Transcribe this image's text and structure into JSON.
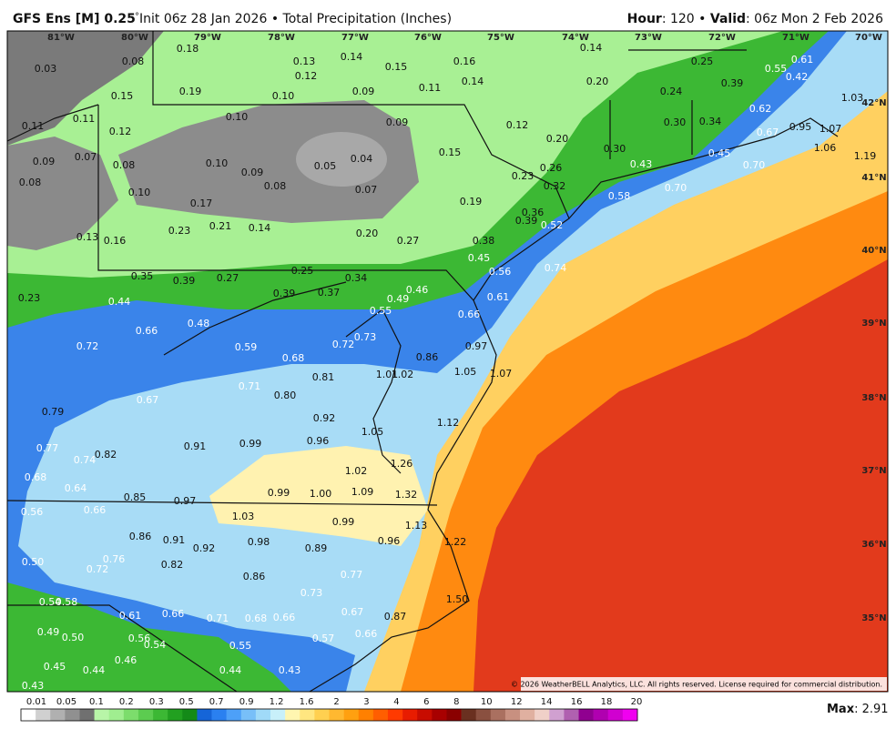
{
  "header": {
    "model": "GFS Ens [M] 0.25",
    "degree": "°",
    "description": " Init 06z 28 Jan 2026 • Total Precipitation (Inches)",
    "hour_key": "Hour",
    "hour_value": ": 120 • ",
    "valid_key": "Valid",
    "valid_value": ": 06z Mon 2 Feb 2026"
  },
  "longitudes": [
    "81°W",
    "80°W",
    "79°W",
    "78°W",
    "77°W",
    "76°W",
    "75°W",
    "74°W",
    "73°W",
    "72°W",
    "71°W",
    "70°W"
  ],
  "latitudes": [
    "42°N",
    "41°N",
    "40°N",
    "39°N",
    "38°N",
    "37°N",
    "36°N",
    "35°N"
  ],
  "station_values": [
    "0.03",
    "0.08",
    "0.18",
    "0.13",
    "0.14",
    "0.12",
    "0.15",
    "0.16",
    "0.14",
    "0.14",
    "0.20",
    "0.25",
    "0.55",
    "0.61",
    "0.39",
    "0.42",
    "0.24",
    "1.03",
    "0.15",
    "0.19",
    "0.10",
    "0.09",
    "0.11",
    "0.62",
    "0.11",
    "0.12",
    "0.10",
    "0.09",
    "0.12",
    "0.30",
    "0.34",
    "0.95",
    "0.67",
    "1.07",
    "0.11",
    "0.20",
    "0.30",
    "1.06",
    "1.19",
    "0.09",
    "0.07",
    "0.08",
    "0.10",
    "0.09",
    "0.05",
    "0.04",
    "0.15",
    "0.45",
    "0.43",
    "0.70",
    "0.08",
    "0.08",
    "0.07",
    "0.26",
    "0.23",
    "0.32",
    "0.70",
    "0.58",
    "0.10",
    "0.17",
    "0.19",
    "0.36",
    "0.39",
    "0.52",
    "0.23",
    "0.21",
    "0.14",
    "0.20",
    "0.27",
    "0.13",
    "0.16",
    "0.38",
    "0.45",
    "0.56",
    "0.74",
    "0.35",
    "0.25",
    "0.39",
    "0.27",
    "0.34",
    "0.23",
    "0.44",
    "0.39",
    "0.37",
    "0.46",
    "0.49",
    "0.61",
    "0.55",
    "0.66",
    "0.48",
    "0.66",
    "0.73",
    "0.72",
    "0.72",
    "0.59",
    "0.97",
    "0.86",
    "0.68",
    "1.05",
    "1.07",
    "0.81",
    "1.01",
    "1.02",
    "0.71",
    "0.80",
    "0.67",
    "0.79",
    "0.92",
    "1.12",
    "1.05",
    "0.96",
    "0.91",
    "0.99",
    "0.77",
    "0.74",
    "0.82",
    "1.26",
    "1.02",
    "0.68",
    "0.64",
    "0.85",
    "0.97",
    "0.99",
    "1.00",
    "1.09",
    "1.32",
    "0.56",
    "0.66",
    "1.03",
    "0.99",
    "1.13",
    "0.86",
    "0.91",
    "0.98",
    "0.92",
    "0.89",
    "0.96",
    "1.22",
    "0.76",
    "0.50",
    "0.72",
    "0.82",
    "0.86",
    "0.77",
    "0.73",
    "1.50",
    "0.54",
    "0.58",
    "0.61",
    "0.66",
    "0.71",
    "0.68",
    "0.66",
    "0.67",
    "0.87",
    "0.49",
    "0.50",
    "0.56",
    "0.66",
    "0.57",
    "0.54",
    "0.55",
    "0.46",
    "0.45",
    "0.44",
    "0.44",
    "0.43",
    "0.43"
  ],
  "copyright": "© 2026 WeatherBELL Analytics, LLC. All rights reserved. License required for commercial distribution.",
  "legend": {
    "labels": [
      "0.01",
      "0.05",
      "0.1",
      "0.2",
      "0.3",
      "0.5",
      "0.7",
      "0.9",
      "1.2",
      "1.6",
      "2",
      "3",
      "4",
      "6",
      "8",
      "10",
      "12",
      "14",
      "16",
      "18",
      "20"
    ],
    "colors": [
      "#ffffff",
      "#d0d0d0",
      "#b0b0b0",
      "#909090",
      "#707070",
      "#b8f5a8",
      "#a0ee90",
      "#7cdd6c",
      "#5ccc50",
      "#3cb834",
      "#22a020",
      "#148a18",
      "#1565d8",
      "#2a80f0",
      "#4da0f8",
      "#78bff8",
      "#a0daf8",
      "#c8f0fa",
      "#fff6b0",
      "#ffe680",
      "#ffd050",
      "#ffb830",
      "#ffa010",
      "#ff8000",
      "#ff5e00",
      "#ff3a00",
      "#e81c00",
      "#c80c00",
      "#a80000",
      "#8a0000",
      "#6a3020",
      "#8a5040",
      "#aa7060",
      "#c89080",
      "#e0b0a0",
      "#f0d0c8",
      "#d0a0d0",
      "#b060b0",
      "#900090",
      "#b000b0",
      "#d000d0",
      "#f000f0"
    ]
  },
  "max": {
    "key": "Max",
    "value": ": 2.91"
  }
}
